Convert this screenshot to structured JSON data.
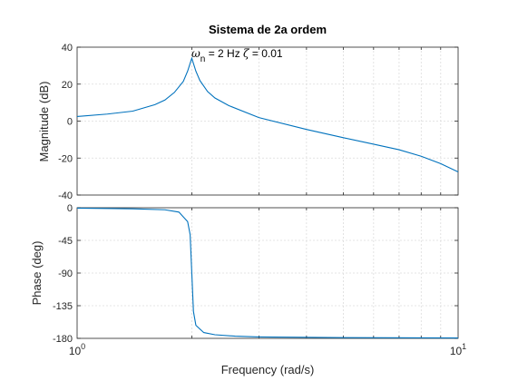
{
  "figure": {
    "title": "Sistema de 2a ordem",
    "annotation": {
      "omega": "ω",
      "omega_sub": "n",
      "rest": " = 2 Hz ",
      "zeta": "ζ",
      "zeta_rest": " = 0.01"
    }
  },
  "chart_data": [
    {
      "type": "line",
      "panel": "magnitude",
      "title": "Sistema de 2a ordem",
      "xlabel": "",
      "ylabel": "Magnitude (dB)",
      "xscale": "log",
      "xlim": [
        1,
        10
      ],
      "ylim": [
        -40,
        40
      ],
      "yticks": [
        -40,
        -20,
        0,
        20,
        40
      ],
      "grid": true,
      "color": "#0072BD",
      "series": [
        {
          "x": [
            1,
            1.2,
            1.4,
            1.6,
            1.7,
            1.8,
            1.9,
            1.95,
            2.0,
            2.05,
            2.1,
            2.2,
            2.3,
            2.5,
            3,
            4,
            5,
            6,
            7,
            8,
            9,
            10
          ],
          "y": [
            2.5,
            3.8,
            5.4,
            8.9,
            11.4,
            15.5,
            21.5,
            27,
            34,
            27,
            22,
            16,
            12.5,
            8.4,
            1.9,
            -4.5,
            -9,
            -12.5,
            -15.5,
            -19,
            -23,
            -27.5
          ]
        }
      ]
    },
    {
      "type": "line",
      "panel": "phase",
      "xlabel": "Frequency  (rad/s)",
      "ylabel": "Phase (deg)",
      "xscale": "log",
      "xlim": [
        1,
        10
      ],
      "xticks": [
        "10^0",
        "10^1"
      ],
      "ylim": [
        -180,
        0
      ],
      "yticks": [
        -180,
        -135,
        -90,
        -45,
        0
      ],
      "grid": true,
      "color": "#0072BD",
      "series": [
        {
          "x": [
            1,
            1.4,
            1.7,
            1.85,
            1.95,
            1.98,
            2.0,
            2.02,
            2.05,
            2.15,
            2.3,
            2.6,
            3,
            5,
            10
          ],
          "y": [
            -0.5,
            -1.5,
            -2.8,
            -6,
            -19,
            -37,
            -90,
            -143,
            -162,
            -172,
            -175,
            -177,
            -178,
            -179,
            -179.5
          ]
        }
      ]
    }
  ]
}
